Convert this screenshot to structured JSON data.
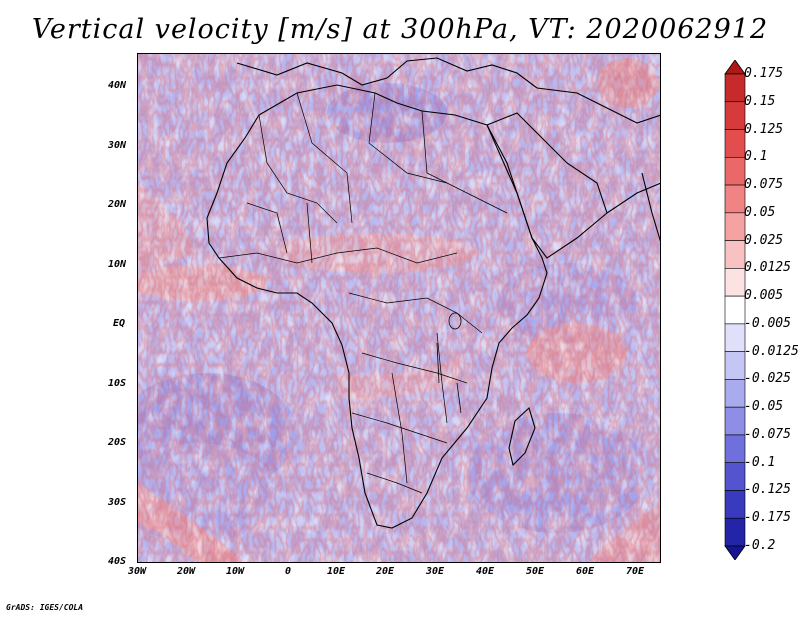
{
  "title": "Vertical velocity [m/s] at 300hPa, VT: 2020062912",
  "credit": "GrADS: IGES/COLA",
  "lat_labels": [
    "40N",
    "30N",
    "20N",
    "10N",
    "EQ",
    "10S",
    "20S",
    "30S",
    "40S"
  ],
  "lon_labels": [
    "30W",
    "20W",
    "10W",
    "0",
    "10E",
    "20E",
    "30E",
    "40E",
    "50E",
    "60E",
    "70E"
  ],
  "colorbar": {
    "labels": [
      "0.175",
      "0.15",
      "0.125",
      "0.1",
      "0.075",
      "0.05",
      "0.025",
      "0.0125",
      "0.005",
      "-0.005",
      "-0.0125",
      "-0.025",
      "-0.05",
      "-0.075",
      "-0.1",
      "-0.125",
      "-0.175",
      "-0.2"
    ],
    "colors": [
      "#b01818",
      "#c62a2a",
      "#d63a3a",
      "#e24e4e",
      "#ea6868",
      "#f08484",
      "#f5a2a2",
      "#f9c2c2",
      "#fce2e2",
      "#ffffff",
      "#e0e0fa",
      "#c6c6f4",
      "#aaaaee",
      "#8e8ee6",
      "#7070dc",
      "#5454ce",
      "#3a3abe",
      "#2424a8",
      "#141494"
    ]
  }
}
